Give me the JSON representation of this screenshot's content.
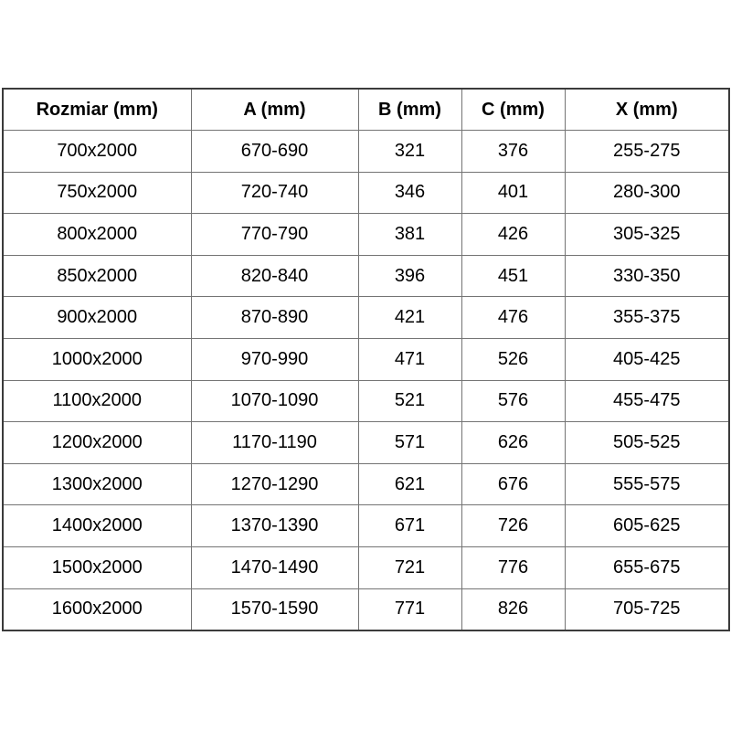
{
  "chart_data": {
    "type": "table",
    "columns": [
      "Rozmiar (mm)",
      "A (mm)",
      "B (mm)",
      "C (mm)",
      "X (mm)"
    ],
    "rows": [
      [
        "700x2000",
        "670-690",
        "321",
        "376",
        "255-275"
      ],
      [
        "750x2000",
        "720-740",
        "346",
        "401",
        "280-300"
      ],
      [
        "800x2000",
        "770-790",
        "381",
        "426",
        "305-325"
      ],
      [
        "850x2000",
        "820-840",
        "396",
        "451",
        "330-350"
      ],
      [
        "900x2000",
        "870-890",
        "421",
        "476",
        "355-375"
      ],
      [
        "1000x2000",
        "970-990",
        "471",
        "526",
        "405-425"
      ],
      [
        "1100x2000",
        "1070-1090",
        "521",
        "576",
        "455-475"
      ],
      [
        "1200x2000",
        "1170-1190",
        "571",
        "626",
        "505-525"
      ],
      [
        "1300x2000",
        "1270-1290",
        "621",
        "676",
        "555-575"
      ],
      [
        "1400x2000",
        "1370-1390",
        "671",
        "726",
        "605-625"
      ],
      [
        "1500x2000",
        "1470-1490",
        "721",
        "776",
        "655-675"
      ],
      [
        "1600x2000",
        "1570-1590",
        "771",
        "826",
        "705-725"
      ]
    ],
    "layout": {
      "grid": true,
      "header_bold": true,
      "text_align": "center"
    }
  },
  "colors": {
    "border_outer": "#3b3b3b",
    "border_inner": "#747474",
    "text": "#000000",
    "background": "#ffffff"
  }
}
